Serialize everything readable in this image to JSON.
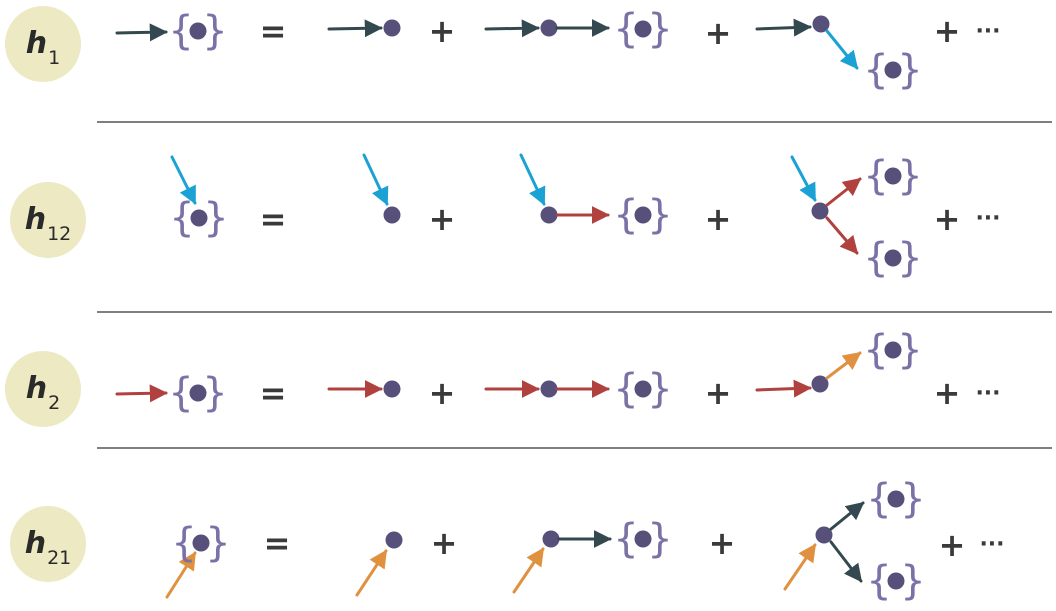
{
  "rows": [
    {
      "id": "h1",
      "label": "h",
      "subscript": "1"
    },
    {
      "id": "h12",
      "label": "h",
      "subscript": "12"
    },
    {
      "id": "h2",
      "label": "h",
      "subscript": "2"
    },
    {
      "id": "h21",
      "label": "h",
      "subscript": "21"
    }
  ],
  "symbols": {
    "equals": "=",
    "plus": "+",
    "ellipsis": "···"
  },
  "colors": {
    "badge": "#ece9c3",
    "node": "#57507a",
    "brace": "#7a72a6",
    "dark_slate": "#34494f",
    "cyan": "#1aa2d4",
    "red": "#b0413e",
    "orange": "#e0913f",
    "divider": "#333333",
    "operator": "#3a3a3a"
  }
}
